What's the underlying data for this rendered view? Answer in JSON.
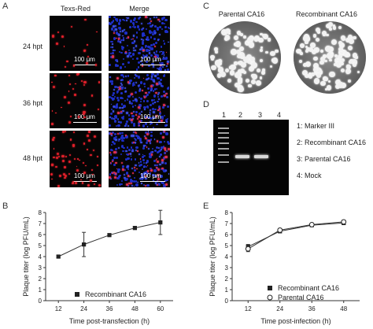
{
  "panels": {
    "A": "A",
    "B": "B",
    "C": "C",
    "D": "D",
    "E": "E"
  },
  "panel_a": {
    "col_headers": [
      "Texs-Red",
      "Merge"
    ],
    "rows": [
      {
        "label": "24 hpt",
        "scale": "100 μm",
        "red_density": 0.15
      },
      {
        "label": "36 hpt",
        "scale": "100 μm",
        "red_density": 0.35
      },
      {
        "label": "48 hpt",
        "scale": "100 μm",
        "red_density": 0.75
      }
    ]
  },
  "panel_c": {
    "titles": [
      "Parental CA16",
      "Recombinant CA16"
    ]
  },
  "panel_d": {
    "lanes": [
      "1",
      "2",
      "3",
      "4"
    ],
    "legend": [
      "1: Marker III",
      "2: Recombinant CA16",
      "3: Parental CA16",
      "4: Mock"
    ],
    "colors": {
      "gel_bg": "#050505",
      "band": "#d8d8d8"
    }
  },
  "chart_data": [
    {
      "type": "line",
      "xlabel": "Time post-transfection (h)",
      "ylabel": "Plaque titer (log PFU/mL)",
      "x": [
        12,
        24,
        36,
        48,
        60
      ],
      "xticks": [
        "12",
        "24",
        "36",
        "48",
        "60"
      ],
      "yticks": [
        "0",
        "1",
        "2",
        "3",
        "4",
        "5",
        "6",
        "7",
        "8"
      ],
      "xlim": [
        6,
        66
      ],
      "ylim": [
        0,
        8
      ],
      "series": [
        {
          "name": "Recombinant CA16",
          "marker": "filled-square",
          "values": [
            4.0,
            5.1,
            5.95,
            6.6,
            7.1
          ],
          "errors": [
            0.1,
            1.1,
            0.1,
            0.15,
            1.1
          ]
        }
      ]
    },
    {
      "type": "line",
      "xlabel": "Time post-infection (h)",
      "ylabel": "Plaque titer (log PFU/mL)",
      "x": [
        12,
        24,
        36,
        48
      ],
      "xticks": [
        "12",
        "24",
        "36",
        "48"
      ],
      "yticks": [
        "0",
        "1",
        "2",
        "3",
        "4",
        "5",
        "6",
        "7",
        "8"
      ],
      "xlim": [
        6,
        54
      ],
      "ylim": [
        0,
        8
      ],
      "series": [
        {
          "name": "Recombinant CA16",
          "marker": "filled-square",
          "values": [
            4.9,
            6.3,
            6.85,
            7.05
          ],
          "errors": [
            0.2,
            0.15,
            0.1,
            0.15
          ]
        },
        {
          "name": "Parental CA16",
          "marker": "open-circle",
          "values": [
            4.7,
            6.4,
            6.9,
            7.15
          ],
          "errors": [
            0.25,
            0.15,
            0.1,
            0.15
          ]
        }
      ]
    }
  ]
}
